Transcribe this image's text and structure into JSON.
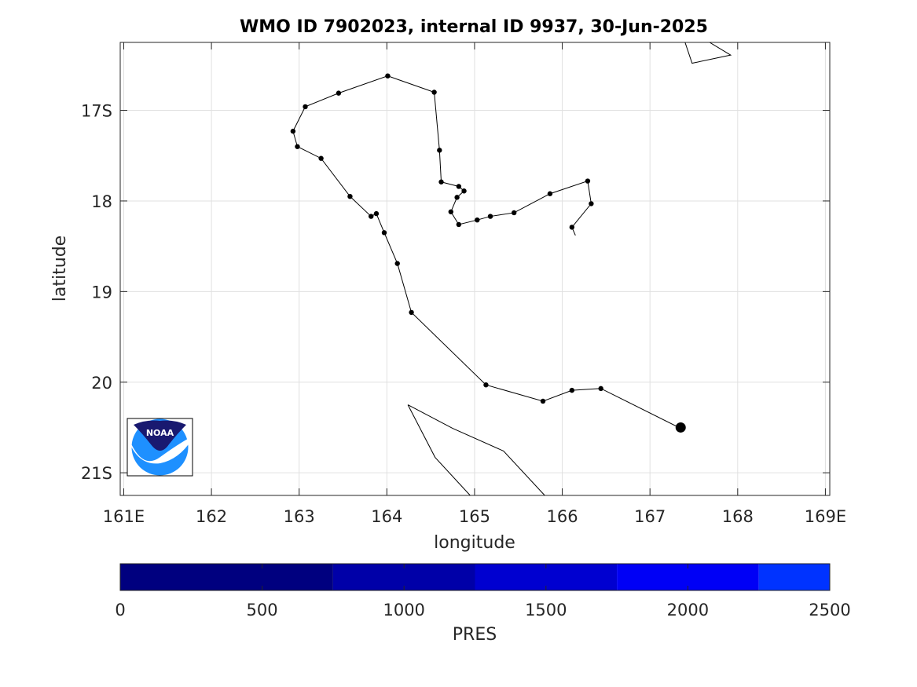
{
  "title": "WMO ID 7902023, internal ID 9937, 30-Jun-2025",
  "map": {
    "xlabel": "longitude",
    "ylabel": "latitude",
    "xlim": [
      160.96,
      169.05
    ],
    "ylim": [
      16.25,
      21.25
    ],
    "x_ticks": [
      {
        "value": 161,
        "label": "161E"
      },
      {
        "value": 162,
        "label": "162"
      },
      {
        "value": 163,
        "label": "163"
      },
      {
        "value": 164,
        "label": "164"
      },
      {
        "value": 165,
        "label": "165"
      },
      {
        "value": 166,
        "label": "166"
      },
      {
        "value": 167,
        "label": "167"
      },
      {
        "value": 168,
        "label": "168"
      },
      {
        "value": 169,
        "label": "169E"
      }
    ],
    "y_ticks": [
      {
        "value": 17,
        "label": "17S"
      },
      {
        "value": 18,
        "label": "18"
      },
      {
        "value": 19,
        "label": "19"
      },
      {
        "value": 20,
        "label": "20"
      },
      {
        "value": 21,
        "label": "21S"
      }
    ],
    "grid": true,
    "track": [
      [
        167.35,
        20.5
      ],
      [
        167.33,
        20.5
      ],
      [
        166.44,
        20.07
      ],
      [
        166.11,
        20.09
      ],
      [
        165.78,
        20.21
      ],
      [
        165.13,
        20.03
      ],
      [
        164.28,
        19.23
      ],
      [
        164.12,
        18.69
      ],
      [
        163.97,
        18.35
      ],
      [
        163.88,
        18.14
      ],
      [
        163.82,
        18.17
      ],
      [
        163.58,
        17.95
      ],
      [
        163.25,
        17.53
      ],
      [
        162.98,
        17.4
      ],
      [
        162.93,
        17.23
      ],
      [
        163.07,
        16.96
      ],
      [
        163.45,
        16.81
      ],
      [
        164.01,
        16.62
      ],
      [
        164.54,
        16.8
      ],
      [
        164.6,
        17.44
      ],
      [
        164.62,
        17.79
      ],
      [
        164.82,
        17.84
      ],
      [
        164.88,
        17.89
      ],
      [
        164.8,
        17.96
      ],
      [
        164.73,
        18.12
      ],
      [
        164.82,
        18.26
      ],
      [
        165.03,
        18.21
      ],
      [
        165.18,
        18.17
      ],
      [
        165.45,
        18.13
      ],
      [
        165.86,
        17.92
      ],
      [
        166.29,
        17.78
      ],
      [
        166.33,
        18.03
      ],
      [
        166.11,
        18.29
      ]
    ],
    "track_tail": [
      [
        166.11,
        18.29
      ],
      [
        166.15,
        18.38
      ]
    ],
    "last_position": [
      167.35,
      20.5
    ],
    "coastlines": [
      [
        [
          167.4,
          16.25
        ],
        [
          167.48,
          16.48
        ],
        [
          167.92,
          16.39
        ],
        [
          167.68,
          16.25
        ]
      ],
      [
        [
          164.24,
          20.25
        ],
        [
          164.55,
          20.83
        ],
        [
          164.95,
          21.25
        ]
      ],
      [
        [
          164.24,
          20.25
        ],
        [
          164.75,
          20.51
        ],
        [
          165.33,
          20.76
        ],
        [
          165.8,
          21.25
        ]
      ]
    ],
    "logo_name": "noaa-logo",
    "logo_text": "NOAA"
  },
  "colorbar": {
    "label": "PRES",
    "range": [
      0,
      2500
    ],
    "ticks": [
      0,
      500,
      1000,
      1500,
      2000,
      2500
    ],
    "segments": [
      {
        "from": 0,
        "to": 750,
        "color": "#00007f"
      },
      {
        "from": 750,
        "to": 1250,
        "color": "#0000a8"
      },
      {
        "from": 1250,
        "to": 1750,
        "color": "#0000d0"
      },
      {
        "from": 1750,
        "to": 2250,
        "color": "#0000f6"
      },
      {
        "from": 2250,
        "to": 2500,
        "color": "#0033ff"
      }
    ]
  },
  "colors": {
    "track": "#000000",
    "grid": "#e0e0e0",
    "axis": "#262626",
    "noaa_navy": "#191970",
    "noaa_blue": "#1e90ff"
  }
}
